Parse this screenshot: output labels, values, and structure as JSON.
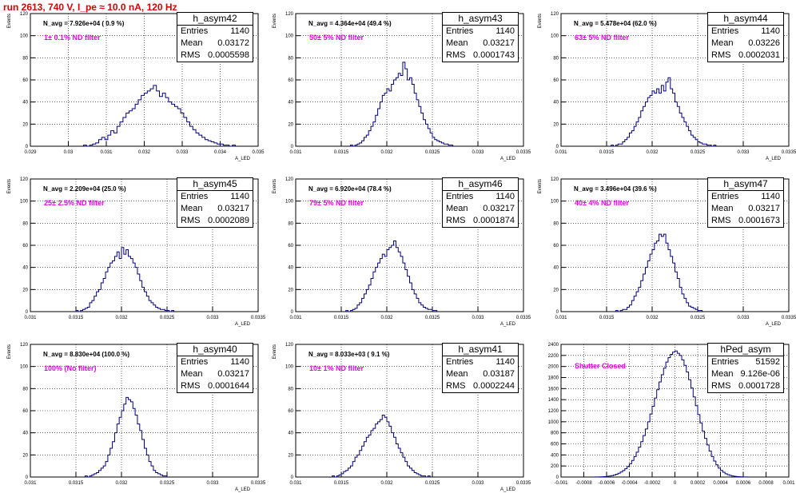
{
  "title": "run 2613,   740 V, I_pe ≈ 10.0 nA, 120 Hz",
  "colors": {
    "title": "#e00000",
    "histogram": "#000080",
    "annotation": "#ee00ee",
    "grid": "#000000"
  },
  "chart_data": [
    {
      "type": "histogram",
      "name": "h_asym42",
      "entries": "1140",
      "mean": "0.03172",
      "rms": "0.0005598",
      "navg_label": "N_avg = 7.926e+04 ( 0.9 %)",
      "filter_label": "1± 0.1% ND filter",
      "xlabel": "A_LED",
      "ylabel": "Events",
      "xlim": [
        0.029,
        0.035
      ],
      "ylim": [
        0,
        120
      ],
      "xticks": [
        "0.029",
        "0.03",
        "0.031",
        "0.032",
        "0.033",
        "0.034",
        "0.035"
      ],
      "yticks": [
        "0",
        "20",
        "40",
        "60",
        "80",
        "100",
        "120"
      ],
      "bin_start": 0.0304,
      "bin_width": 8e-05,
      "values": [
        1,
        0,
        1,
        2,
        3,
        6,
        8,
        6,
        10,
        14,
        12,
        18,
        22,
        26,
        30,
        32,
        34,
        38,
        42,
        46,
        48,
        50,
        52,
        55,
        50,
        45,
        48,
        44,
        40,
        38,
        36,
        34,
        30,
        26,
        22,
        18,
        15,
        12,
        10,
        8,
        6,
        5,
        4,
        3,
        2,
        2,
        1,
        1,
        0,
        1
      ]
    },
    {
      "type": "histogram",
      "name": "h_asym43",
      "entries": "1140",
      "mean": "0.03217",
      "rms": "0.0001743",
      "navg_label": "N_avg = 4.364e+04 (49.4 %)",
      "filter_label": "50± 5% ND filter",
      "xlabel": "A_LED",
      "ylabel": "Events",
      "xlim": [
        0.031,
        0.0335
      ],
      "ylim": [
        0,
        120
      ],
      "xticks": [
        "0.031",
        "0.0315",
        "0.032",
        "0.0325",
        "0.033",
        "0.0335"
      ],
      "yticks": [
        "0",
        "20",
        "40",
        "60",
        "80",
        "100",
        "120"
      ],
      "bin_start": 0.0316,
      "bin_width": 2.5e-05,
      "values": [
        1,
        0,
        1,
        2,
        3,
        5,
        8,
        10,
        14,
        18,
        22,
        28,
        34,
        40,
        46,
        48,
        52,
        50,
        56,
        60,
        62,
        66,
        64,
        76,
        70,
        60,
        62,
        56,
        48,
        42,
        36,
        30,
        24,
        20,
        16,
        12,
        8,
        6,
        5,
        4,
        3,
        2,
        2,
        1,
        1
      ]
    },
    {
      "type": "histogram",
      "name": "h_asym44",
      "entries": "1140",
      "mean": "0.03226",
      "rms": "0.0002031",
      "navg_label": "N_avg = 5.478e+04 (62.0 %)",
      "filter_label": "63± 5% ND filter",
      "xlabel": "A_LED",
      "ylabel": "Events",
      "xlim": [
        0.031,
        0.0335
      ],
      "ylim": [
        0,
        120
      ],
      "xticks": [
        "0.031",
        "0.0315",
        "0.032",
        "0.0325",
        "0.033",
        "0.0335"
      ],
      "yticks": [
        "0",
        "20",
        "40",
        "60",
        "80",
        "100",
        "120"
      ],
      "bin_start": 0.03155,
      "bin_width": 2.5e-05,
      "values": [
        1,
        0,
        1,
        2,
        2,
        4,
        6,
        8,
        12,
        14,
        18,
        22,
        26,
        32,
        36,
        40,
        44,
        46,
        50,
        48,
        52,
        48,
        55,
        50,
        58,
        62,
        52,
        48,
        40,
        36,
        30,
        26,
        22,
        18,
        14,
        10,
        8,
        6,
        4,
        3,
        2,
        2,
        1,
        1,
        0,
        1
      ]
    },
    {
      "type": "histogram",
      "name": "h_asym45",
      "entries": "1140",
      "mean": "0.03217",
      "rms": "0.0002089",
      "navg_label": "N_avg = 2.209e+04 (25.0 %)",
      "filter_label": "25± 2.5% ND filter",
      "xlabel": "A_LED",
      "ylabel": "Events",
      "xlim": [
        0.031,
        0.0335
      ],
      "ylim": [
        0,
        120
      ],
      "xticks": [
        "0.031",
        "0.0315",
        "0.032",
        "0.0325",
        "0.033",
        "0.0335"
      ],
      "yticks": [
        "0",
        "20",
        "40",
        "60",
        "80",
        "100",
        "120"
      ],
      "bin_start": 0.0315,
      "bin_width": 2.5e-05,
      "values": [
        1,
        0,
        1,
        2,
        3,
        4,
        8,
        10,
        14,
        18,
        20,
        26,
        30,
        36,
        40,
        44,
        46,
        50,
        54,
        48,
        58,
        52,
        56,
        50,
        48,
        44,
        40,
        34,
        28,
        22,
        18,
        14,
        10,
        8,
        6,
        4,
        3,
        2,
        2,
        1,
        1,
        0,
        1
      ]
    },
    {
      "type": "histogram",
      "name": "h_asym46",
      "entries": "1140",
      "mean": "0.03217",
      "rms": "0.0001874",
      "navg_label": "N_avg = 6.920e+04 (78.4 %)",
      "filter_label": "79± 5% ND filter",
      "xlabel": "A_LED",
      "ylabel": "Events",
      "xlim": [
        0.031,
        0.0335
      ],
      "ylim": [
        0,
        120
      ],
      "xticks": [
        "0.031",
        "0.0315",
        "0.032",
        "0.0325",
        "0.033",
        "0.0335"
      ],
      "yticks": [
        "0",
        "20",
        "40",
        "60",
        "80",
        "100",
        "120"
      ],
      "bin_start": 0.03155,
      "bin_width": 2.5e-05,
      "values": [
        1,
        0,
        1,
        2,
        3,
        6,
        8,
        12,
        16,
        20,
        24,
        30,
        36,
        40,
        44,
        48,
        52,
        50,
        56,
        58,
        60,
        64,
        58,
        54,
        50,
        44,
        38,
        32,
        26,
        20,
        16,
        12,
        8,
        6,
        4,
        3,
        2,
        2,
        1,
        1
      ]
    },
    {
      "type": "histogram",
      "name": "h_asym47",
      "entries": "1140",
      "mean": "0.03217",
      "rms": "0.0001673",
      "navg_label": "N_avg = 3.496e+04 (39.6 %)",
      "filter_label": "40± 4% ND filter",
      "xlabel": "A_LED",
      "ylabel": "Events",
      "xlim": [
        0.031,
        0.0335
      ],
      "ylim": [
        0,
        120
      ],
      "xticks": [
        "0.031",
        "0.0315",
        "0.032",
        "0.0325",
        "0.033",
        "0.0335"
      ],
      "yticks": [
        "0",
        "20",
        "40",
        "60",
        "80",
        "100",
        "120"
      ],
      "bin_start": 0.0316,
      "bin_width": 2.5e-05,
      "values": [
        1,
        0,
        1,
        2,
        2,
        4,
        6,
        10,
        14,
        18,
        22,
        28,
        34,
        40,
        46,
        52,
        56,
        62,
        64,
        70,
        68,
        70,
        62,
        56,
        50,
        44,
        36,
        30,
        22,
        16,
        12,
        8,
        5,
        4,
        3,
        2,
        1,
        1
      ]
    },
    {
      "type": "histogram",
      "name": "h_asym40",
      "entries": "1140",
      "mean": "0.03217",
      "rms": "0.0001644",
      "navg_label": "N_avg = 8.830e+04 (100.0 %)",
      "filter_label": "100% (No filter)",
      "xlabel": "A_LED",
      "ylabel": "Events",
      "xlim": [
        0.031,
        0.0335
      ],
      "ylim": [
        0,
        120
      ],
      "xticks": [
        "0.031",
        "0.0315",
        "0.032",
        "0.0325",
        "0.033",
        "0.0335"
      ],
      "yticks": [
        "0",
        "20",
        "40",
        "60",
        "80",
        "100",
        "120"
      ],
      "bin_start": 0.0316,
      "bin_width": 2.5e-05,
      "values": [
        1,
        0,
        1,
        2,
        3,
        4,
        6,
        8,
        10,
        14,
        20,
        26,
        32,
        40,
        48,
        54,
        60,
        66,
        72,
        70,
        68,
        62,
        56,
        48,
        42,
        34,
        26,
        20,
        14,
        10,
        6,
        4,
        3,
        2,
        1,
        1
      ]
    },
    {
      "type": "histogram",
      "name": "h_asym41",
      "entries": "1140",
      "mean": "0.03187",
      "rms": "0.0002244",
      "navg_label": "N_avg = 8.033e+03 ( 9.1 %)",
      "filter_label": "10± 1% ND filter",
      "xlabel": "A_LED",
      "ylabel": "Events",
      "xlim": [
        0.031,
        0.0335
      ],
      "ylim": [
        0,
        120
      ],
      "xticks": [
        "0.031",
        "0.0315",
        "0.032",
        "0.0325",
        "0.033",
        "0.0335"
      ],
      "yticks": [
        "0",
        "20",
        "40",
        "60",
        "80",
        "100",
        "120"
      ],
      "bin_start": 0.0314,
      "bin_width": 2.5e-05,
      "values": [
        1,
        0,
        1,
        2,
        3,
        5,
        6,
        8,
        10,
        14,
        18,
        20,
        24,
        28,
        32,
        36,
        38,
        42,
        44,
        48,
        50,
        52,
        56,
        54,
        50,
        46,
        40,
        36,
        30,
        26,
        22,
        18,
        14,
        10,
        8,
        6,
        4,
        3,
        2,
        1,
        1,
        0,
        1
      ]
    },
    {
      "type": "histogram",
      "name": "hPed_asym",
      "entries": "51592",
      "mean": "9.126e-06",
      "rms": "0.0001728",
      "navg_label": "",
      "filter_label": "Shutter Closed",
      "xlabel": "",
      "ylabel": "",
      "xlim": [
        -0.001,
        0.001
      ],
      "ylim": [
        0,
        2400
      ],
      "xticks": [
        "-0.001",
        "-0.0008",
        "-0.0006",
        "-0.0004",
        "-0.0002",
        "0",
        "0.0002",
        "0.0004",
        "0.0006",
        "0.0008",
        "0.001"
      ],
      "yticks": [
        "0",
        "200",
        "400",
        "600",
        "800",
        "1000",
        "1200",
        "1400",
        "1600",
        "1800",
        "2000",
        "2200",
        "2400"
      ],
      "bin_start": -0.0007,
      "bin_width": 2e-05,
      "values": [
        1,
        2,
        3,
        5,
        8,
        12,
        18,
        26,
        36,
        50,
        68,
        90,
        118,
        150,
        190,
        240,
        300,
        370,
        450,
        540,
        640,
        750,
        870,
        1000,
        1140,
        1280,
        1430,
        1580,
        1720,
        1850,
        1970,
        2080,
        2160,
        2220,
        2260,
        2280,
        2240,
        2200,
        2120,
        2020,
        1900,
        1760,
        1610,
        1450,
        1290,
        1130,
        980,
        830,
        700,
        580,
        470,
        370,
        290,
        220,
        160,
        120,
        86,
        60,
        42,
        28,
        18,
        12,
        8,
        5,
        3,
        2,
        1
      ]
    }
  ]
}
